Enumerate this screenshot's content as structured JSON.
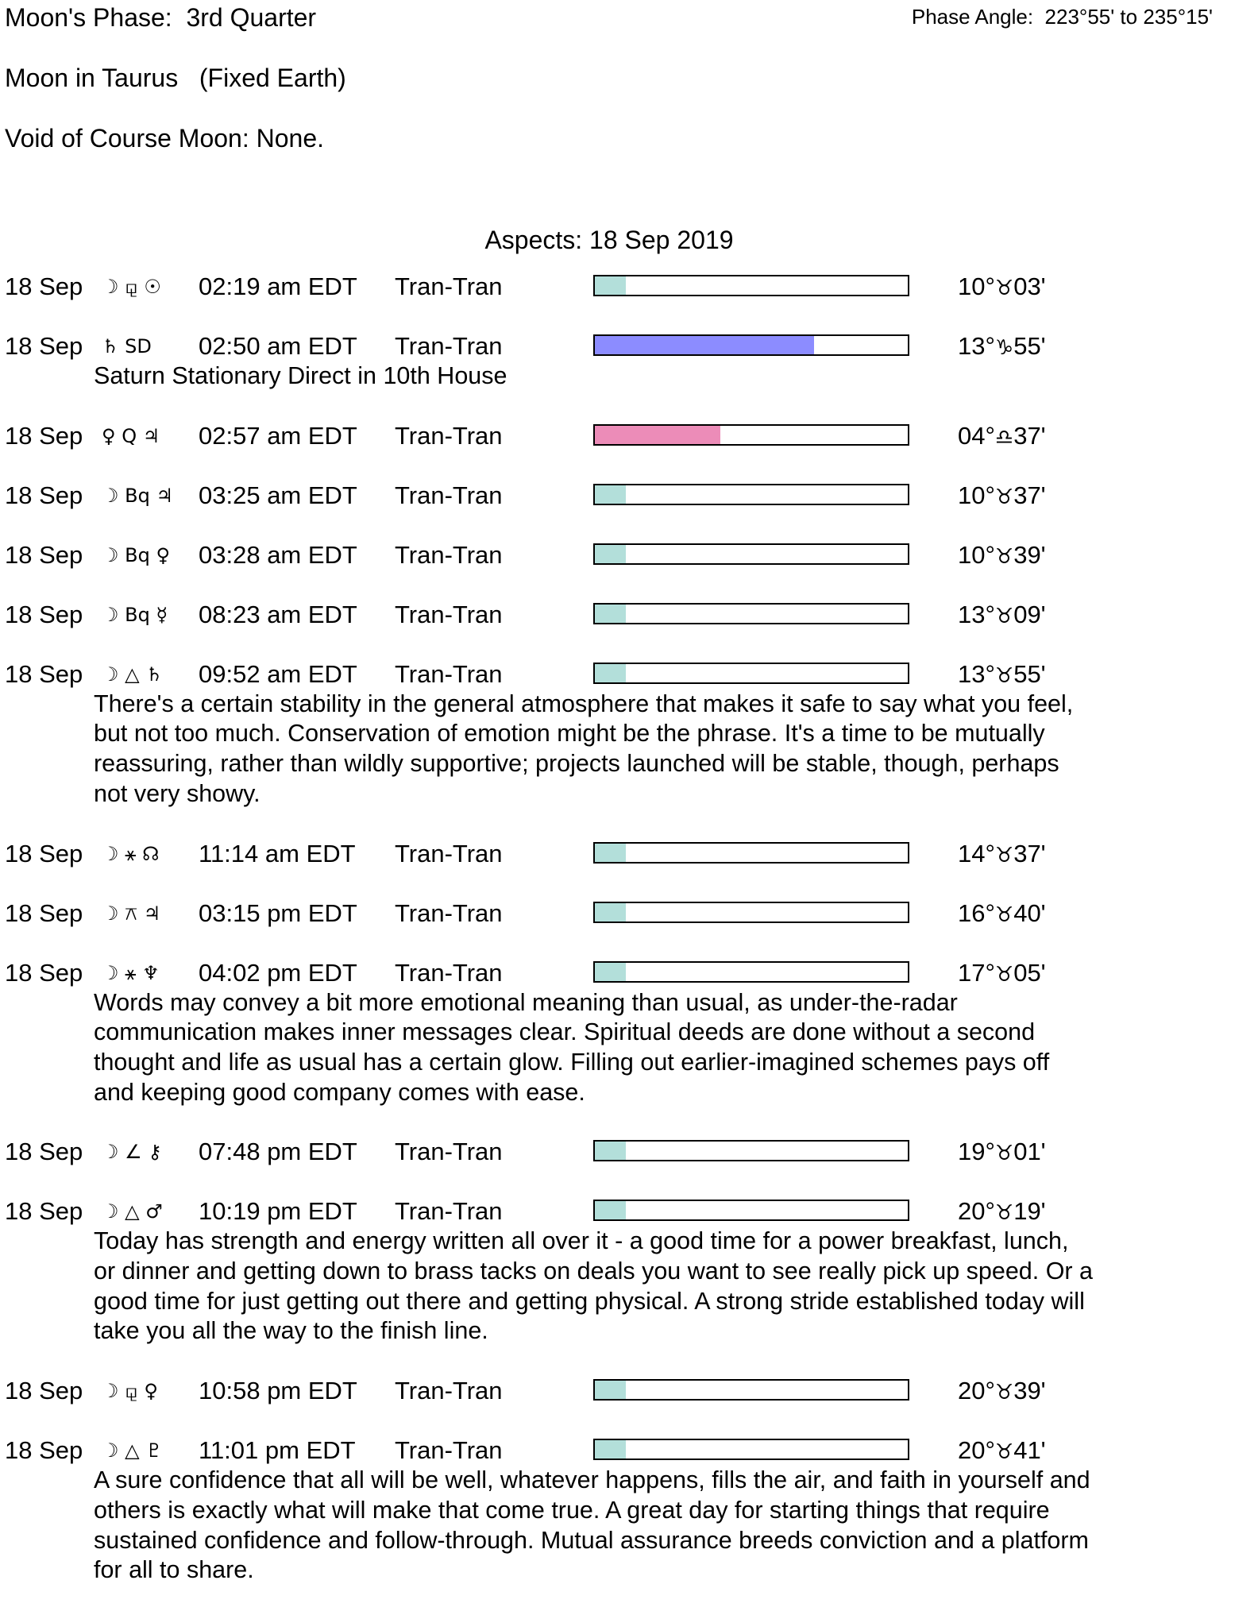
{
  "header": {
    "phase": "Moon's Phase:  3rd Quarter",
    "phase_angle": "Phase Angle:  223°55' to 235°15'",
    "moon_sign": "Moon in Taurus   (Fixed Earth)",
    "void_of_course": "Void of Course Moon: None."
  },
  "aspects_title": "Aspects: 18 Sep 2019",
  "colors": {
    "teal": "#b3dfda",
    "blue": "#8c8cff",
    "pink": "#ec8cb8"
  },
  "aspects": [
    {
      "date": "18 Sep",
      "glyphs": "☽ ⚼ ☉",
      "time": "02:19 am EDT",
      "type": "Tran-Tran",
      "strength": 0.1,
      "color": "teal",
      "deg": "10°",
      "sign": "♉",
      "min": "03'",
      "desc": []
    },
    {
      "date": "18 Sep",
      "glyphs": "♄ SD",
      "time": "02:50 am EDT",
      "type": "Tran-Tran",
      "strength": 0.7,
      "color": "blue",
      "deg": "13°",
      "sign": "♑",
      "min": "55'",
      "desc": [
        "Saturn Stationary Direct in 10th House"
      ]
    },
    {
      "date": "18 Sep",
      "glyphs": "♀ Q ♃",
      "time": "02:57 am EDT",
      "type": "Tran-Tran",
      "strength": 0.4,
      "color": "pink",
      "deg": "04°",
      "sign": "♎",
      "min": "37'",
      "desc": []
    },
    {
      "date": "18 Sep",
      "glyphs": "☽ Bq ♃",
      "time": "03:25 am EDT",
      "type": "Tran-Tran",
      "strength": 0.1,
      "color": "teal",
      "deg": "10°",
      "sign": "♉",
      "min": "37'",
      "desc": []
    },
    {
      "date": "18 Sep",
      "glyphs": "☽ Bq ♀",
      "time": "03:28 am EDT",
      "type": "Tran-Tran",
      "strength": 0.1,
      "color": "teal",
      "deg": "10°",
      "sign": "♉",
      "min": "39'",
      "desc": []
    },
    {
      "date": "18 Sep",
      "glyphs": "☽ Bq ☿",
      "time": "08:23 am EDT",
      "type": "Tran-Tran",
      "strength": 0.1,
      "color": "teal",
      "deg": "13°",
      "sign": "♉",
      "min": "09'",
      "desc": []
    },
    {
      "date": "18 Sep",
      "glyphs": "☽ △ ♄",
      "time": "09:52 am EDT",
      "type": "Tran-Tran",
      "strength": 0.1,
      "color": "teal",
      "deg": "13°",
      "sign": "♉",
      "min": "55'",
      "desc": [
        "There's a certain stability in the general atmosphere that makes it safe to say what you feel,",
        "but not too much. Conservation of emotion might be the phrase. It's a time to be mutually",
        "reassuring, rather than wildly supportive; projects launched will be stable, though, perhaps",
        "not very showy."
      ]
    },
    {
      "date": "18 Sep",
      "glyphs": "☽ ⚹ ☊",
      "time": "11:14 am EDT",
      "type": "Tran-Tran",
      "strength": 0.1,
      "color": "teal",
      "deg": "14°",
      "sign": "♉",
      "min": "37'",
      "desc": []
    },
    {
      "date": "18 Sep",
      "glyphs": "☽ ⚻ ♃",
      "time": "03:15 pm EDT",
      "type": "Tran-Tran",
      "strength": 0.1,
      "color": "teal",
      "deg": "16°",
      "sign": "♉",
      "min": "40'",
      "desc": []
    },
    {
      "date": "18 Sep",
      "glyphs": "☽ ⚹ ♆",
      "time": "04:02 pm EDT",
      "type": "Tran-Tran",
      "strength": 0.1,
      "color": "teal",
      "deg": "17°",
      "sign": "♉",
      "min": "05'",
      "desc": [
        "Words may convey a bit more emotional meaning than usual, as under-the-radar",
        "communication makes inner messages clear. Spiritual deeds are done without a second",
        "thought and life as usual has a certain glow. Filling out earlier-imagined schemes pays off",
        "and keeping good company comes with ease."
      ]
    },
    {
      "date": "18 Sep",
      "glyphs": "☽ ∠ ⚷",
      "time": "07:48 pm EDT",
      "type": "Tran-Tran",
      "strength": 0.1,
      "color": "teal",
      "deg": "19°",
      "sign": "♉",
      "min": "01'",
      "desc": []
    },
    {
      "date": "18 Sep",
      "glyphs": "☽ △ ♂",
      "time": "10:19 pm EDT",
      "type": "Tran-Tran",
      "strength": 0.1,
      "color": "teal",
      "deg": "20°",
      "sign": "♉",
      "min": "19'",
      "desc": [
        "Today has strength and energy written all over it - a good time for a power breakfast, lunch,",
        "or dinner and getting down to brass tacks on deals you want to see really pick up speed. Or a",
        "good time for just getting out there and getting physical. A strong stride established today will",
        "take you all the way to the finish line."
      ]
    },
    {
      "date": "18 Sep",
      "glyphs": "☽ ⚼ ♀",
      "time": "10:58 pm EDT",
      "type": "Tran-Tran",
      "strength": 0.1,
      "color": "teal",
      "deg": "20°",
      "sign": "♉",
      "min": "39'",
      "desc": []
    },
    {
      "date": "18 Sep",
      "glyphs": "☽ △ ♇",
      "time": "11:01 pm EDT",
      "type": "Tran-Tran",
      "strength": 0.1,
      "color": "teal",
      "deg": "20°",
      "sign": "♉",
      "min": "41'",
      "desc": [
        "A sure confidence that all will be well, whatever happens, fills the air, and faith in yourself and",
        "others is exactly what will make that come true. A great day for starting things that require",
        "sustained confidence and follow-through. Mutual assurance breeds conviction and a platform",
        "for all to share."
      ]
    }
  ]
}
